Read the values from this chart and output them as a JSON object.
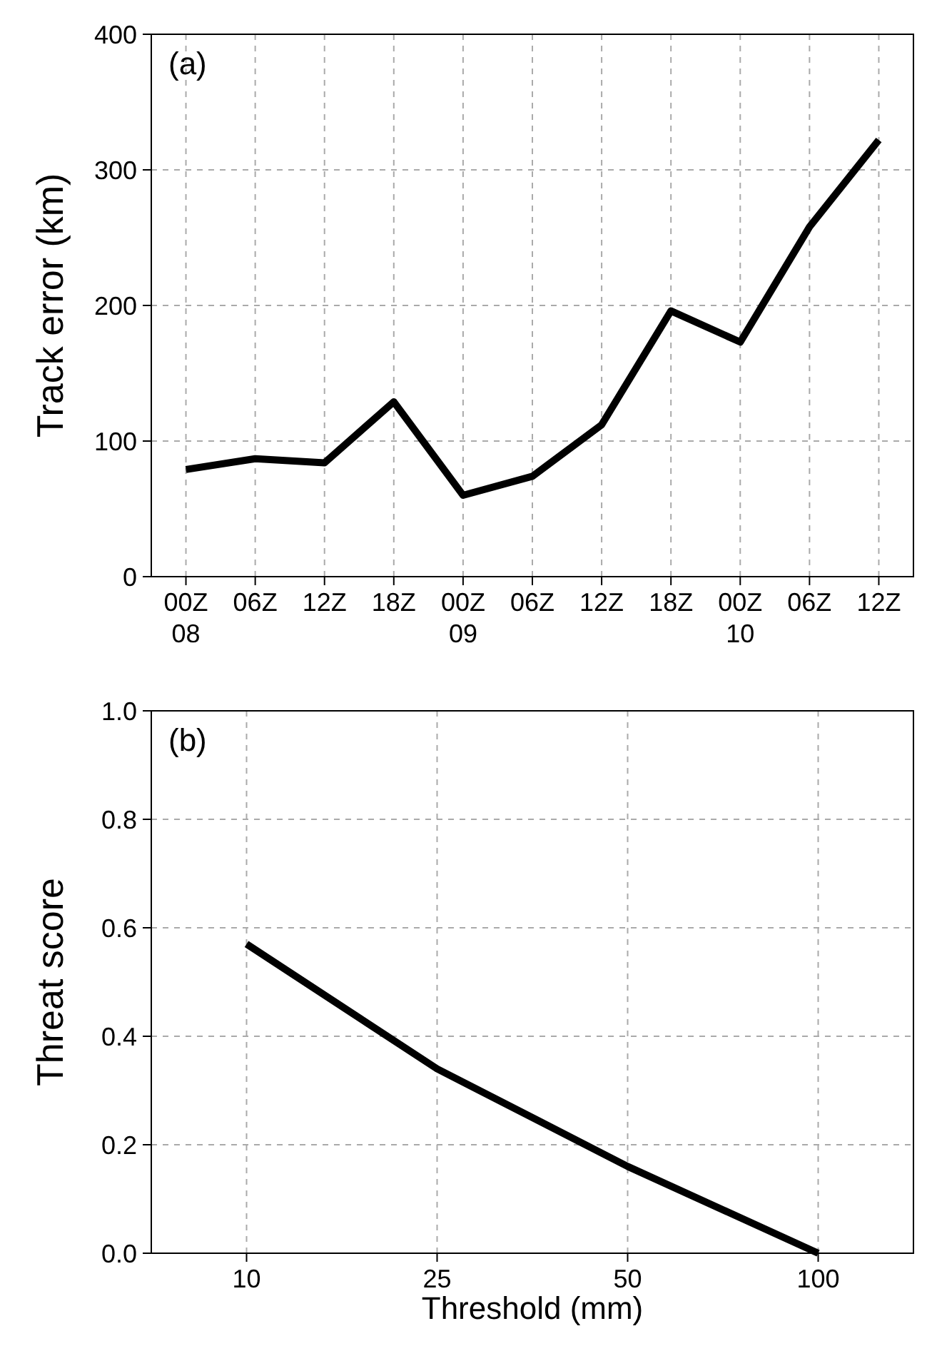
{
  "chart_data": [
    {
      "type": "line",
      "title": "(a)",
      "ylabel": "Track error (km)",
      "categories": [
        "00Z\n08",
        "06Z",
        "12Z",
        "18Z",
        "00Z\n09",
        "06Z",
        "12Z",
        "18Z",
        "00Z\n10",
        "06Z",
        "12Z"
      ],
      "series": [
        {
          "color": "#000000",
          "values": [
            79,
            87,
            84,
            129,
            60,
            74,
            112,
            196,
            173,
            258,
            322
          ]
        }
      ],
      "ylim": [
        0,
        400
      ],
      "yticks": [
        0,
        100,
        200,
        300,
        400
      ],
      "grid": true,
      "marker": "none",
      "line_style": "solid"
    },
    {
      "type": "line",
      "title": "(b)",
      "xlabel": "Threshold (mm)",
      "ylabel": "Threat score",
      "categories": [
        "10",
        "25",
        "50",
        "100"
      ],
      "series": [
        {
          "color": "#000000",
          "values": [
            0.57,
            0.34,
            0.16,
            0
          ]
        }
      ],
      "ylim": [
        0,
        1
      ],
      "yticks": [
        {
          "value": 0,
          "label": "0.0"
        },
        {
          "value": 0.2,
          "label": "0.2"
        },
        {
          "value": 0.4,
          "label": "0.4"
        },
        {
          "value": 0.6,
          "label": "0.6"
        },
        {
          "value": 0.8,
          "label": "0.8"
        },
        {
          "value": 1,
          "label": "1.0"
        }
      ],
      "grid": true,
      "marker": "none",
      "line_style": "solid"
    }
  ]
}
